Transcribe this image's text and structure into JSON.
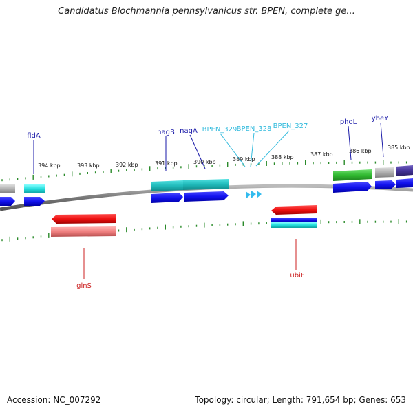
{
  "title": "Candidatus Blochmannia pennsylvanicus str. BPEN, complete ge...",
  "accession_label": "Accession: NC_007292",
  "summary_label": "Topology: circular; Length: 791,654 bp; Genes: 653",
  "colors": {
    "backbone": "#8a8a8a",
    "tick": "#2a8a2a",
    "gene_label_forward": "#1a1aa8",
    "gene_label_reverse": "#cc2222",
    "locus_label": "#33bbdd",
    "kbp_label": "#111111",
    "cds_blue": "#1010dd",
    "red": "#e01010",
    "pink": "#ee8888",
    "cyan": "#22cccc",
    "teal": "#20b8b8",
    "green": "#33bb33",
    "gray": "#aaaaaa",
    "navy": "#443399",
    "arrow_cyan": "#33bbee"
  },
  "scale": {
    "kbp_labels": [
      "394 kbp",
      "393 kbp",
      "392 kbp",
      "391 kbp",
      "390 kbp",
      "389 kbp",
      "388 kbp",
      "387 kbp",
      "386 kbp",
      "385 kbp"
    ]
  },
  "genes": [
    {
      "label": "fldA",
      "strand": "forward"
    },
    {
      "label": "nagB",
      "strand": "forward"
    },
    {
      "label": "nagA",
      "strand": "forward"
    },
    {
      "label": "BPEN_329",
      "strand": "forward"
    },
    {
      "label": "BPEN_328",
      "strand": "forward"
    },
    {
      "label": "BPEN_327",
      "strand": "forward"
    },
    {
      "label": "phoL",
      "strand": "forward"
    },
    {
      "label": "ybeY",
      "strand": "forward"
    },
    {
      "label": "glnS",
      "strand": "reverse"
    },
    {
      "label": "ubiF",
      "strand": "reverse"
    }
  ]
}
